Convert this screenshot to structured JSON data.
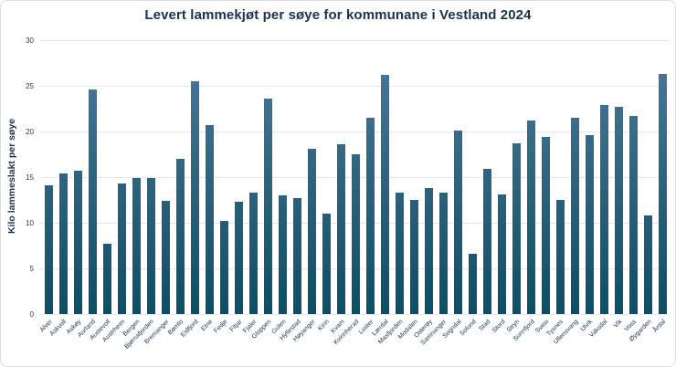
{
  "chart": {
    "title": "Levert lammekjøt per søye for kommunane i Vestland 2024",
    "ylabel": "Kilo lammeslakt per søye"
  },
  "colors": {
    "text_navy": "#1c3150",
    "gridline": "#dfe8f4",
    "bar_gradient_top": "#4b7aa1",
    "bar_gradient_bottom": "#0d4e67",
    "card_border": "#d9dee4",
    "background": "#ffffff"
  },
  "chart_data": {
    "type": "bar",
    "title": "Levert lammekjøt per søye for kommunane i Vestland 2024",
    "xlabel": "",
    "ylabel": "Kilo lammeslakt per søye",
    "ylim": [
      0,
      30
    ],
    "yticks": [
      0,
      5,
      10,
      15,
      20,
      25,
      30
    ],
    "grid": true,
    "legend": false,
    "categories": [
      "Alver",
      "Askvoll",
      "Askøy",
      "Aurland",
      "Austevoll",
      "Austrheim",
      "Bergen",
      "Bjørnafjorden",
      "Bremanger",
      "Bømlo",
      "Eidfjord",
      "Etne",
      "Fedje",
      "Fitjar",
      "Fjaler",
      "Gloppen",
      "Gulen",
      "Hyllestad",
      "Høyanger",
      "Kinn",
      "Kvam",
      "Kvinnherad",
      "Luster",
      "Lærdal",
      "Masfjorden",
      "Modalen",
      "Osterøy",
      "Samnanger",
      "Sogndal",
      "Solund",
      "Stad",
      "Stord",
      "Stryn",
      "Sunnfjord",
      "Sveio",
      "Tysnes",
      "Ullensvang",
      "Ulvik",
      "Vaksdal",
      "Vik",
      "Voss",
      "Øygarden",
      "Årdal"
    ],
    "values": [
      14.1,
      15.4,
      15.7,
      24.6,
      7.7,
      14.3,
      14.9,
      14.9,
      12.4,
      17.0,
      25.5,
      20.7,
      10.2,
      12.3,
      13.3,
      23.6,
      13.0,
      12.7,
      18.1,
      11.0,
      18.6,
      17.5,
      21.5,
      26.2,
      13.3,
      12.5,
      13.8,
      13.3,
      20.1,
      6.6,
      15.9,
      13.1,
      18.7,
      21.2,
      19.4,
      12.5,
      21.5,
      19.6,
      22.9,
      22.7,
      21.7,
      10.8,
      26.3
    ]
  }
}
